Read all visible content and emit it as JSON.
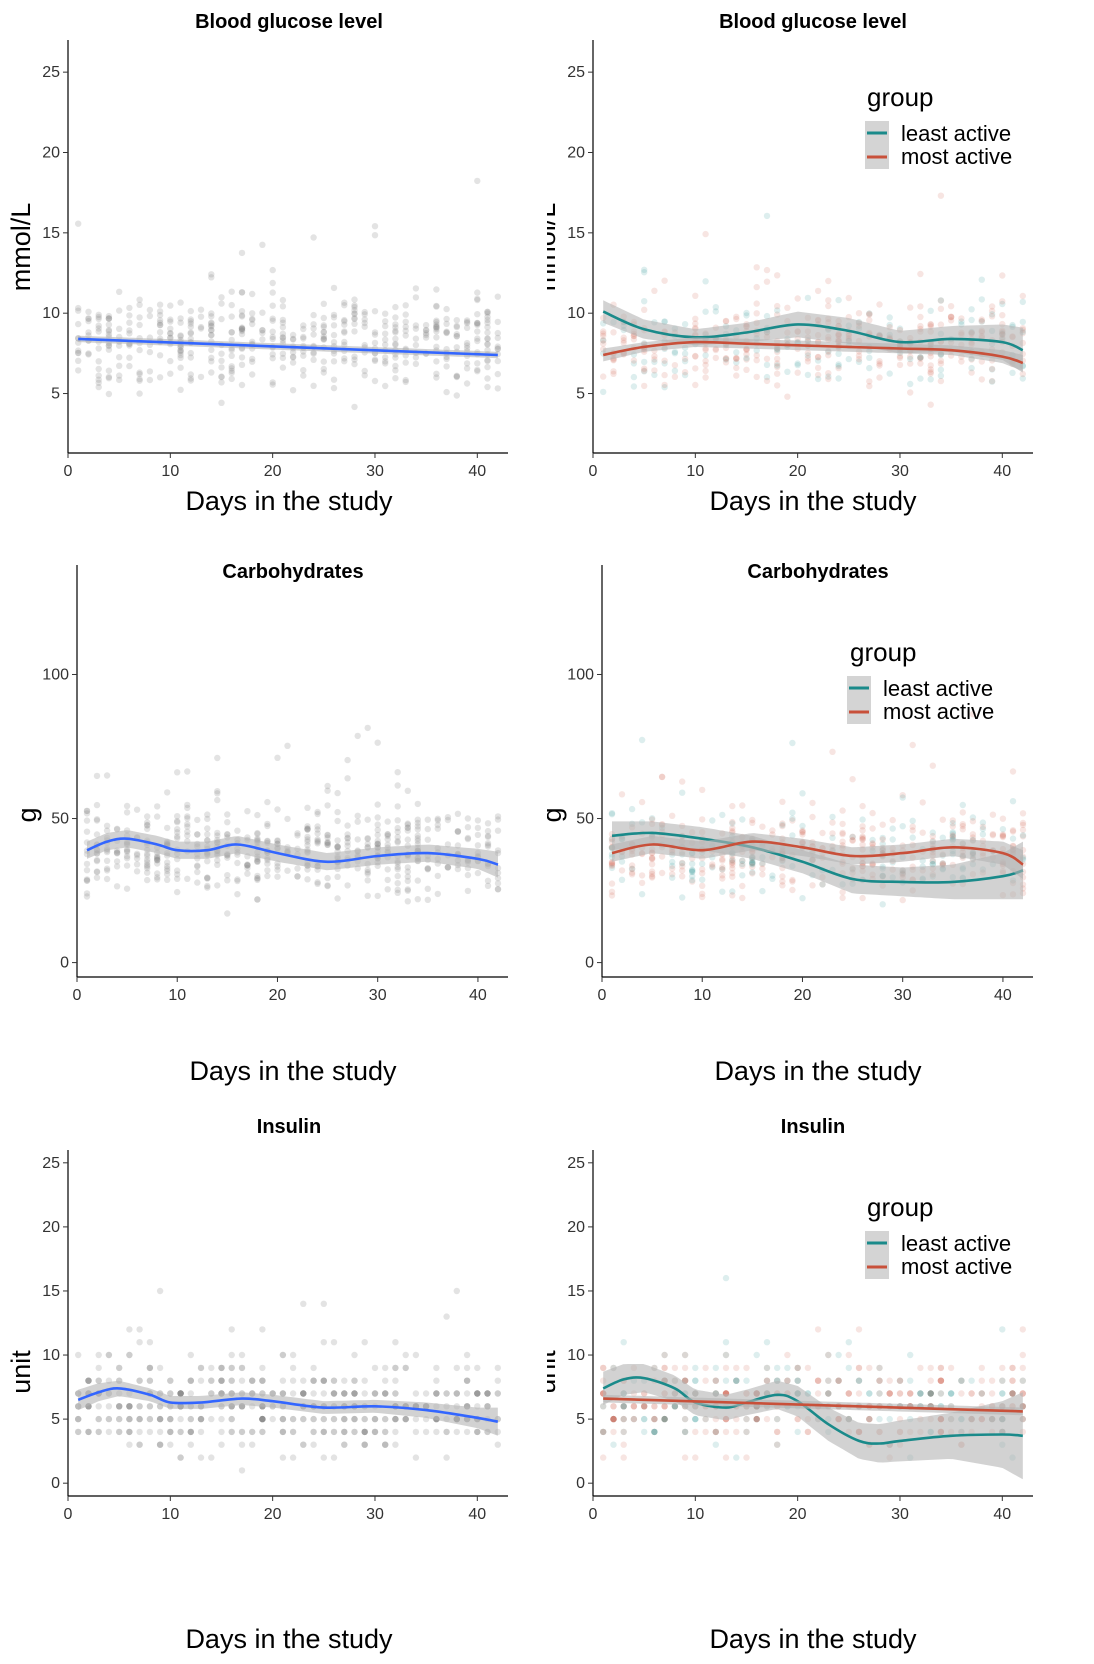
{
  "figure": {
    "xlabel": "Days in the study",
    "legend_title": "group",
    "groups": [
      {
        "name": "least active",
        "color": "#1a8a8a"
      },
      {
        "name": "most active",
        "color": "#c8503a"
      }
    ],
    "overall_color": "#3366ff",
    "point_color": "#808080",
    "band_color": "#b4b4b4"
  },
  "chart_data": [
    {
      "type": "scatter",
      "title": "Blood glucose level",
      "xlabel": "Days in the study",
      "ylabel": "mmol/L",
      "xlim": [
        0,
        43
      ],
      "ylim": [
        1.3,
        27
      ],
      "x_ticks": [
        0,
        10,
        20,
        30,
        40
      ],
      "y_ticks": [
        5,
        10,
        15,
        20,
        25
      ],
      "grid": false,
      "legend": null,
      "series": [
        {
          "x": [
            1,
            42
          ],
          "y": [
            8.4,
            7.4
          ],
          "smoother": "linear",
          "band": 0.2
        }
      ]
    },
    {
      "type": "scatter",
      "title": "Blood glucose level",
      "xlabel": "Days in the study",
      "ylabel": "mmol/L",
      "xlim": [
        0,
        43
      ],
      "ylim": [
        1.3,
        27
      ],
      "x_ticks": [
        0,
        10,
        20,
        30,
        40
      ],
      "y_ticks": [
        5,
        10,
        15,
        20,
        25
      ],
      "grid": false,
      "legend": "top-right",
      "series": [
        {
          "name": "least active",
          "x": [
            1,
            5,
            10,
            15,
            20,
            25,
            30,
            35,
            40,
            42
          ],
          "y": [
            10.1,
            9.0,
            8.5,
            8.8,
            9.3,
            8.9,
            8.2,
            8.4,
            8.2,
            7.7
          ],
          "band": [
            0.7,
            0.6,
            0.5,
            0.6,
            0.8,
            0.8,
            0.7,
            0.8,
            1.1,
            1.4
          ]
        },
        {
          "name": "most active",
          "x": [
            1,
            5,
            10,
            15,
            20,
            25,
            30,
            35,
            40,
            42
          ],
          "y": [
            7.4,
            7.9,
            8.2,
            8.1,
            8.0,
            7.9,
            7.8,
            7.7,
            7.3,
            6.9
          ],
          "band": [
            0.4,
            0.3,
            0.3,
            0.3,
            0.3,
            0.3,
            0.3,
            0.3,
            0.4,
            0.5
          ]
        }
      ]
    },
    {
      "type": "scatter",
      "title": "Carbohydrates",
      "xlabel": "Days in the study",
      "ylabel": "g",
      "xlim": [
        0,
        43
      ],
      "ylim": [
        -5,
        138
      ],
      "x_ticks": [
        0,
        10,
        20,
        30,
        40
      ],
      "y_ticks": [
        0,
        50,
        100
      ],
      "grid": false,
      "legend": null,
      "series": [
        {
          "x": [
            1,
            3,
            5,
            8,
            10,
            13,
            16,
            20,
            25,
            30,
            35,
            40,
            42
          ],
          "y": [
            39,
            42,
            43,
            41,
            39,
            39,
            41,
            38,
            35,
            37,
            38,
            36,
            34
          ],
          "band": [
            3,
            3,
            3,
            3,
            3,
            3,
            3,
            3,
            3,
            3,
            3,
            3.5,
            4.5
          ]
        }
      ]
    },
    {
      "type": "scatter",
      "title": "Carbohydrates",
      "xlabel": "Days in the study",
      "ylabel": "g",
      "xlim": [
        0,
        43
      ],
      "ylim": [
        -5,
        138
      ],
      "x_ticks": [
        0,
        10,
        20,
        30,
        40
      ],
      "y_ticks": [
        0,
        50,
        100
      ],
      "grid": false,
      "legend": "top-right",
      "series": [
        {
          "name": "least active",
          "x": [
            1,
            5,
            10,
            15,
            20,
            25,
            30,
            35,
            40,
            42
          ],
          "y": [
            44,
            45,
            43,
            40,
            35,
            29,
            28,
            28,
            30,
            32
          ],
          "band": [
            5,
            4,
            4,
            4,
            4,
            5,
            5,
            6,
            8,
            10
          ]
        },
        {
          "name": "most active",
          "x": [
            1,
            5,
            10,
            15,
            20,
            25,
            30,
            35,
            40,
            42
          ],
          "y": [
            38,
            41,
            39,
            42,
            40,
            37,
            38,
            40,
            38,
            34
          ],
          "band": [
            3,
            3,
            3,
            3,
            3,
            3,
            3,
            3,
            4,
            5
          ]
        }
      ]
    },
    {
      "type": "scatter",
      "title": "Insulin",
      "xlabel": "Days in the study",
      "ylabel": "unit",
      "xlim": [
        0,
        43
      ],
      "ylim": [
        -1,
        26
      ],
      "x_ticks": [
        0,
        10,
        20,
        30,
        40
      ],
      "y_ticks": [
        0,
        5,
        10,
        15,
        20,
        25
      ],
      "grid": false,
      "legend": null,
      "series": [
        {
          "x": [
            1,
            3,
            5,
            8,
            10,
            13,
            17,
            20,
            25,
            30,
            35,
            40,
            42
          ],
          "y": [
            6.5,
            7.1,
            7.4,
            6.9,
            6.3,
            6.3,
            6.6,
            6.4,
            5.9,
            6.0,
            5.7,
            5.1,
            4.8
          ],
          "band": [
            0.8,
            0.7,
            0.6,
            0.5,
            0.5,
            0.5,
            0.5,
            0.5,
            0.5,
            0.5,
            0.6,
            0.8,
            1.1
          ]
        }
      ]
    },
    {
      "type": "scatter",
      "title": "Insulin",
      "xlabel": "Days in the study",
      "ylabel": "unit",
      "xlim": [
        0,
        43
      ],
      "ylim": [
        -1,
        26
      ],
      "x_ticks": [
        0,
        10,
        20,
        30,
        40
      ],
      "y_ticks": [
        0,
        5,
        10,
        15,
        20,
        25
      ],
      "grid": false,
      "legend": "top-right",
      "series": [
        {
          "name": "least active",
          "x": [
            1,
            3,
            5,
            8,
            10,
            13,
            15,
            18,
            20,
            23,
            26,
            28,
            30,
            35,
            40,
            42
          ],
          "y": [
            7.4,
            8.1,
            8.2,
            7.4,
            6.3,
            5.9,
            6.3,
            6.9,
            6.4,
            4.6,
            3.3,
            3.1,
            3.3,
            3.7,
            3.8,
            3.7
          ],
          "band": [
            1.3,
            1.2,
            1.1,
            1.0,
            1.0,
            1.0,
            1.0,
            1.1,
            1.2,
            1.3,
            1.4,
            1.5,
            1.6,
            1.8,
            2.6,
            3.4
          ]
        },
        {
          "name": "most active",
          "x": [
            1,
            42
          ],
          "y": [
            6.6,
            5.6
          ],
          "smoother": "linear",
          "band": 0.3
        }
      ]
    }
  ]
}
